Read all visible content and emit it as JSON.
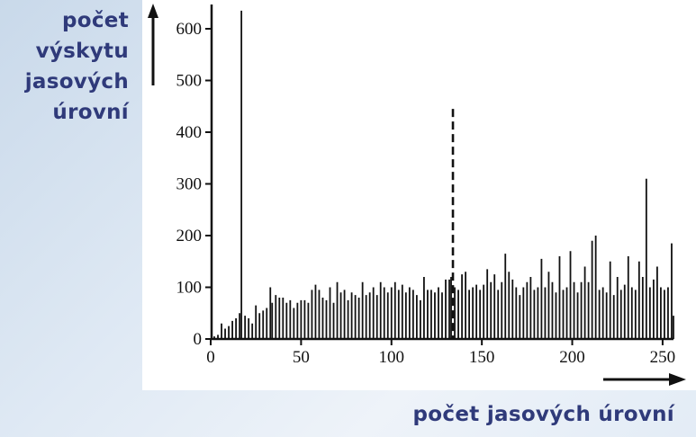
{
  "ylabel_lines": [
    "počet",
    "výskytu",
    "jasových",
    "úrovní"
  ],
  "xlabel": "počet jasových úrovní",
  "colors": {
    "label": "#2f3a7a",
    "bars": "#111111",
    "panel": "#ffffff"
  },
  "chart_data": {
    "type": "bar",
    "xlim": [
      0,
      256
    ],
    "ylim": [
      0,
      650
    ],
    "xticks": [
      0,
      50,
      100,
      150,
      200,
      250
    ],
    "yticks": [
      0,
      100,
      200,
      300,
      400,
      500,
      600
    ],
    "threshold": {
      "x": 134,
      "top": 445,
      "style": "dashed"
    },
    "x": [
      2,
      4,
      6,
      8,
      10,
      12,
      14,
      16,
      17,
      19,
      21,
      23,
      25,
      27,
      29,
      31,
      33,
      34,
      36,
      38,
      40,
      42,
      44,
      46,
      48,
      50,
      52,
      54,
      56,
      58,
      60,
      62,
      64,
      66,
      68,
      70,
      72,
      74,
      76,
      78,
      80,
      82,
      84,
      86,
      88,
      90,
      92,
      94,
      96,
      98,
      100,
      102,
      104,
      106,
      108,
      110,
      112,
      114,
      116,
      118,
      120,
      122,
      124,
      126,
      128,
      130,
      132,
      133,
      135,
      137,
      139,
      141,
      143,
      145,
      147,
      149,
      151,
      153,
      155,
      157,
      159,
      161,
      163,
      165,
      167,
      169,
      171,
      173,
      175,
      177,
      179,
      181,
      183,
      185,
      187,
      189,
      191,
      193,
      195,
      197,
      199,
      201,
      203,
      205,
      207,
      209,
      211,
      213,
      215,
      217,
      219,
      221,
      223,
      225,
      227,
      229,
      231,
      233,
      235,
      237,
      239,
      241,
      243,
      245,
      247,
      249,
      251,
      253,
      255,
      256
    ],
    "values": [
      5,
      8,
      30,
      20,
      25,
      35,
      40,
      50,
      635,
      45,
      40,
      30,
      65,
      50,
      55,
      60,
      100,
      70,
      85,
      80,
      80,
      70,
      75,
      60,
      70,
      75,
      75,
      70,
      95,
      105,
      95,
      80,
      75,
      100,
      70,
      110,
      90,
      95,
      75,
      90,
      85,
      80,
      110,
      85,
      90,
      100,
      85,
      110,
      100,
      90,
      100,
      110,
      95,
      105,
      90,
      100,
      95,
      85,
      75,
      120,
      95,
      95,
      90,
      100,
      90,
      115,
      115,
      120,
      100,
      95,
      125,
      130,
      95,
      100,
      105,
      95,
      105,
      135,
      110,
      125,
      95,
      110,
      165,
      130,
      115,
      100,
      85,
      100,
      110,
      120,
      95,
      100,
      155,
      100,
      130,
      110,
      90,
      160,
      95,
      100,
      170,
      110,
      90,
      110,
      140,
      110,
      190,
      200,
      95,
      100,
      90,
      150,
      85,
      120,
      95,
      105,
      160,
      100,
      95,
      150,
      120,
      310,
      100,
      115,
      140,
      100,
      95,
      100,
      185,
      45
    ]
  }
}
